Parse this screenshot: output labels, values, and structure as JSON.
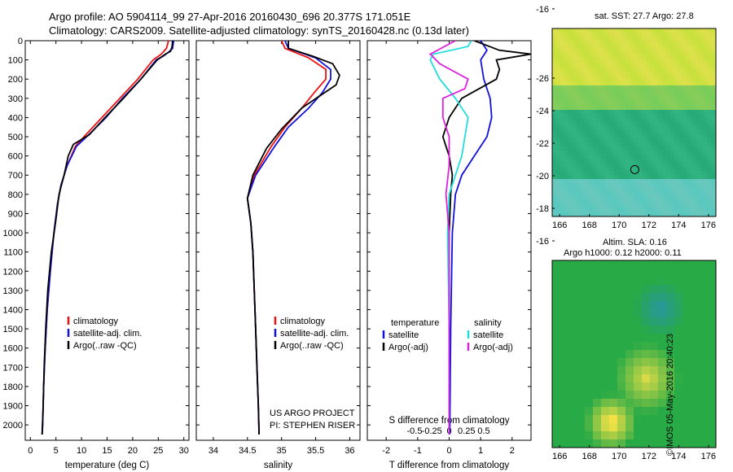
{
  "header": {
    "line1": "Argo profile: AO 5904114_99 27-Apr-2016 20160430_696 20.377S 171.051E",
    "line2": "Climatology: CARS2009. Satellite-adjusted climatology: synTS_20160428.nc (0.13d later)"
  },
  "colors": {
    "climatology": "#ee1111",
    "satellite": "#1111dd",
    "argo": "#000000",
    "satellite_s": "#22dddd",
    "argo_s": "#dd22dd",
    "land": "#f2b8a0"
  },
  "footer": {
    "project": "US ARGO PROJECT",
    "pi": "PI: STEPHEN RISER",
    "stamp": "©IMOS 05-May-2016 20:40:23"
  },
  "maps": {
    "sst_title": "sat. SST: 27.7 Argo: 27.8",
    "sla_title1": "Altim. SLA: 0.16",
    "sla_title2": "Argo h1000: 0.12 h2000: 0.11",
    "lon_ticks": [
      "166",
      "168",
      "170",
      "172",
      "174",
      "176"
    ],
    "lat_ticks": [
      "-16",
      "-18",
      "-20",
      "-22",
      "-24",
      "-26"
    ],
    "float_lon": 171.05,
    "float_lat": -20.38
  },
  "chart_data": [
    {
      "type": "line",
      "xlabel": "temperature (deg C)",
      "ylabel": "",
      "xlim": [
        -1,
        31
      ],
      "ylim": [
        2080,
        0
      ],
      "xticks": [
        0,
        5,
        10,
        15,
        20,
        25,
        30
      ],
      "yticks": [
        0,
        100,
        200,
        300,
        400,
        500,
        600,
        700,
        800,
        900,
        1000,
        1100,
        1200,
        1300,
        1400,
        1500,
        1600,
        1700,
        1800,
        1900,
        2000
      ],
      "legend": [
        "climatology",
        "satellite-adj. clim.",
        "Argo(..raw -QC)"
      ],
      "legend_position": "lower-center",
      "series": [
        {
          "name": "climatology",
          "color": "climatology",
          "points": [
            [
              27.0,
              0
            ],
            [
              26.6,
              40
            ],
            [
              25.6,
              70
            ],
            [
              24.0,
              100
            ],
            [
              21.0,
              200
            ],
            [
              17.5,
              300
            ],
            [
              14.0,
              400
            ],
            [
              10.5,
              500
            ],
            [
              8.8,
              550
            ],
            [
              7.2,
              650
            ],
            [
              6.0,
              750
            ],
            [
              5.3,
              850
            ],
            [
              4.6,
              1000
            ],
            [
              3.9,
              1200
            ],
            [
              3.3,
              1400
            ],
            [
              2.9,
              1600
            ],
            [
              2.6,
              1800
            ],
            [
              2.4,
              2000
            ],
            [
              2.3,
              2050
            ]
          ]
        },
        {
          "name": "satellite-adj. clim.",
          "color": "satellite",
          "points": [
            [
              28.0,
              0
            ],
            [
              27.8,
              40
            ],
            [
              27.0,
              60
            ],
            [
              26.0,
              80
            ],
            [
              24.6,
              100
            ],
            [
              21.6,
              200
            ],
            [
              18.0,
              300
            ],
            [
              14.8,
              400
            ],
            [
              11.0,
              500
            ],
            [
              9.0,
              550
            ],
            [
              7.2,
              650
            ],
            [
              6.0,
              750
            ],
            [
              5.3,
              850
            ],
            [
              4.6,
              1000
            ],
            [
              3.9,
              1200
            ],
            [
              3.3,
              1400
            ],
            [
              2.9,
              1600
            ],
            [
              2.6,
              1800
            ],
            [
              2.4,
              2000
            ],
            [
              2.3,
              2050
            ]
          ]
        },
        {
          "name": "Argo(..raw -QC)",
          "color": "argo",
          "points": [
            [
              27.8,
              0
            ],
            [
              27.7,
              30
            ],
            [
              27.4,
              55
            ],
            [
              26.4,
              70
            ],
            [
              24.8,
              100
            ],
            [
              21.6,
              200
            ],
            [
              18.2,
              300
            ],
            [
              14.6,
              400
            ],
            [
              11.5,
              490
            ],
            [
              8.4,
              540
            ],
            [
              7.4,
              600
            ],
            [
              6.6,
              700
            ],
            [
              5.6,
              800
            ],
            [
              4.9,
              950
            ],
            [
              4.1,
              1100
            ],
            [
              3.4,
              1300
            ],
            [
              3.0,
              1500
            ],
            [
              2.7,
              1700
            ],
            [
              2.5,
              1900
            ],
            [
              2.3,
              2050
            ]
          ]
        }
      ]
    },
    {
      "type": "line",
      "xlabel": "salinity",
      "xlim": [
        33.75,
        36.15
      ],
      "ylim": [
        2080,
        0
      ],
      "xticks": [
        34,
        34.5,
        35,
        35.5,
        36
      ],
      "legend": [
        "climatology",
        "satellite-adj. clim.",
        "Argo(..raw -QC)"
      ],
      "legend_position": "lower-right",
      "series": [
        {
          "name": "climatology",
          "color": "climatology",
          "points": [
            [
              35.0,
              0
            ],
            [
              35.05,
              40
            ],
            [
              35.4,
              90
            ],
            [
              35.65,
              150
            ],
            [
              35.65,
              200
            ],
            [
              35.48,
              270
            ],
            [
              35.3,
              350
            ],
            [
              35.05,
              450
            ],
            [
              34.85,
              550
            ],
            [
              34.6,
              700
            ],
            [
              34.5,
              820
            ],
            [
              34.55,
              950
            ],
            [
              34.58,
              1100
            ],
            [
              34.6,
              1300
            ],
            [
              34.62,
              1500
            ],
            [
              34.64,
              1700
            ],
            [
              34.66,
              1900
            ],
            [
              34.67,
              2050
            ]
          ]
        },
        {
          "name": "satellite-adj. clim.",
          "color": "satellite",
          "points": [
            [
              35.05,
              0
            ],
            [
              35.1,
              40
            ],
            [
              35.5,
              90
            ],
            [
              35.72,
              150
            ],
            [
              35.72,
              200
            ],
            [
              35.6,
              270
            ],
            [
              35.4,
              350
            ],
            [
              35.1,
              450
            ],
            [
              34.9,
              550
            ],
            [
              34.62,
              700
            ],
            [
              34.5,
              820
            ],
            [
              34.55,
              950
            ],
            [
              34.58,
              1100
            ],
            [
              34.6,
              1300
            ],
            [
              34.62,
              1500
            ],
            [
              34.64,
              1700
            ],
            [
              34.66,
              1900
            ],
            [
              34.67,
              2050
            ]
          ]
        },
        {
          "name": "Argo(..raw -QC)",
          "color": "argo",
          "points": [
            [
              35.1,
              0
            ],
            [
              35.1,
              40
            ],
            [
              35.45,
              80
            ],
            [
              35.75,
              120
            ],
            [
              35.85,
              180
            ],
            [
              35.8,
              230
            ],
            [
              35.55,
              290
            ],
            [
              35.3,
              350
            ],
            [
              35.0,
              460
            ],
            [
              34.78,
              560
            ],
            [
              34.58,
              700
            ],
            [
              34.5,
              820
            ],
            [
              34.55,
              950
            ],
            [
              34.58,
              1100
            ],
            [
              34.6,
              1300
            ],
            [
              34.62,
              1500
            ],
            [
              34.64,
              1700
            ],
            [
              34.66,
              1900
            ],
            [
              34.67,
              2050
            ]
          ]
        }
      ]
    },
    {
      "type": "line",
      "xlabel": "T difference from climatology",
      "xlabel_top": "S difference from climatology",
      "xlim": [
        -2.6,
        2.6
      ],
      "ylim": [
        2080,
        0
      ],
      "xticks": [
        "-2",
        "-1",
        "0",
        "1",
        "2"
      ],
      "xticks_top": [
        "-0.5",
        "-0.25",
        "0",
        "0.25",
        "0.5"
      ],
      "legend_groups": [
        "temperature",
        "salinity"
      ],
      "legend": [
        "satellite",
        "Argo(-adj)",
        "satellite",
        "Argo(-adj)"
      ],
      "legend_position": "lower-center",
      "series": [
        {
          "name": "temperature satellite",
          "color": "satellite",
          "points": [
            [
              1.0,
              0
            ],
            [
              1.2,
              50
            ],
            [
              1.0,
              100
            ],
            [
              1.1,
              200
            ],
            [
              1.3,
              300
            ],
            [
              1.35,
              400
            ],
            [
              1.2,
              500
            ],
            [
              0.8,
              600
            ],
            [
              0.4,
              700
            ],
            [
              0.2,
              800
            ],
            [
              0.1,
              1000
            ],
            [
              0.05,
              1500
            ],
            [
              0.02,
              2050
            ]
          ]
        },
        {
          "name": "temperature Argo(-adj)",
          "color": "argo",
          "points": [
            [
              0.8,
              0
            ],
            [
              1.6,
              50
            ],
            [
              2.6,
              70
            ],
            [
              1.5,
              100
            ],
            [
              1.6,
              150
            ],
            [
              1.5,
              200
            ],
            [
              0.4,
              300
            ],
            [
              0.0,
              400
            ],
            [
              -0.2,
              500
            ],
            [
              -0.1,
              550
            ],
            [
              0.0,
              600
            ],
            [
              0.1,
              700
            ],
            [
              0.05,
              800
            ],
            [
              0.0,
              1000
            ],
            [
              0.0,
              1500
            ],
            [
              0.0,
              2050
            ]
          ]
        },
        {
          "name": "salinity satellite",
          "color": "satellite_s",
          "points": [
            [
              0.7,
              0
            ],
            [
              0.6,
              30
            ],
            [
              -0.5,
              70
            ],
            [
              -0.6,
              100
            ],
            [
              -0.3,
              200
            ],
            [
              0.2,
              300
            ],
            [
              0.6,
              400
            ],
            [
              0.5,
              500
            ],
            [
              0.4,
              600
            ],
            [
              0.2,
              700
            ],
            [
              0.0,
              800
            ],
            [
              -0.05,
              1000
            ],
            [
              0.0,
              1500
            ],
            [
              0.0,
              2050
            ]
          ]
        },
        {
          "name": "salinity Argo(-adj)",
          "color": "argo_s",
          "points": [
            [
              0.2,
              0
            ],
            [
              -0.6,
              70
            ],
            [
              -0.3,
              120
            ],
            [
              0.6,
              200
            ],
            [
              0.5,
              250
            ],
            [
              -0.2,
              300
            ],
            [
              -0.2,
              400
            ],
            [
              0.0,
              500
            ],
            [
              0.0,
              650
            ],
            [
              -0.1,
              800
            ],
            [
              0.0,
              1000
            ],
            [
              0.0,
              1500
            ],
            [
              0.0,
              2050
            ]
          ]
        }
      ]
    }
  ]
}
